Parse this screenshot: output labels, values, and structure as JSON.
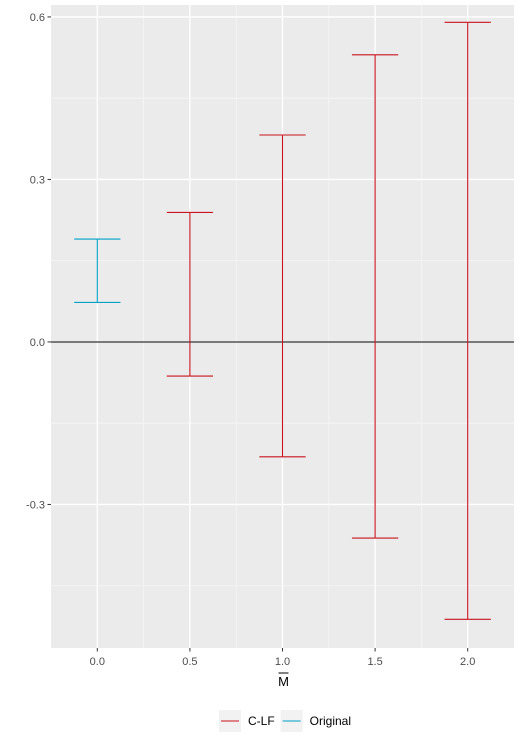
{
  "chart_data": {
    "type": "errorbar",
    "xlabel": "M",
    "xlabel_overline": true,
    "x_ticks": [
      "0.0",
      "0.5",
      "1.0",
      "1.5",
      "2.0"
    ],
    "y_ticks": [
      "-0.3",
      "0.0",
      "0.3",
      "0.6"
    ],
    "xlim": [
      -0.25,
      2.25
    ],
    "ylim": [
      -0.565,
      0.622
    ],
    "grid": true,
    "reference_line_y": 0,
    "legend_position": "bottom",
    "series": [
      {
        "name": "Original",
        "color": "#00a0c8",
        "points": [
          {
            "x": 0.0,
            "lower": 0.073,
            "upper": 0.19
          }
        ]
      },
      {
        "name": "C-LF",
        "color": "#c8141e",
        "points": [
          {
            "x": 0.5,
            "lower": -0.063,
            "upper": 0.239
          },
          {
            "x": 1.0,
            "lower": -0.212,
            "upper": 0.382
          },
          {
            "x": 1.5,
            "lower": -0.362,
            "upper": 0.53
          },
          {
            "x": 2.0,
            "lower": -0.512,
            "upper": 0.59
          }
        ]
      }
    ],
    "legend": [
      "C-LF",
      "Original"
    ]
  }
}
